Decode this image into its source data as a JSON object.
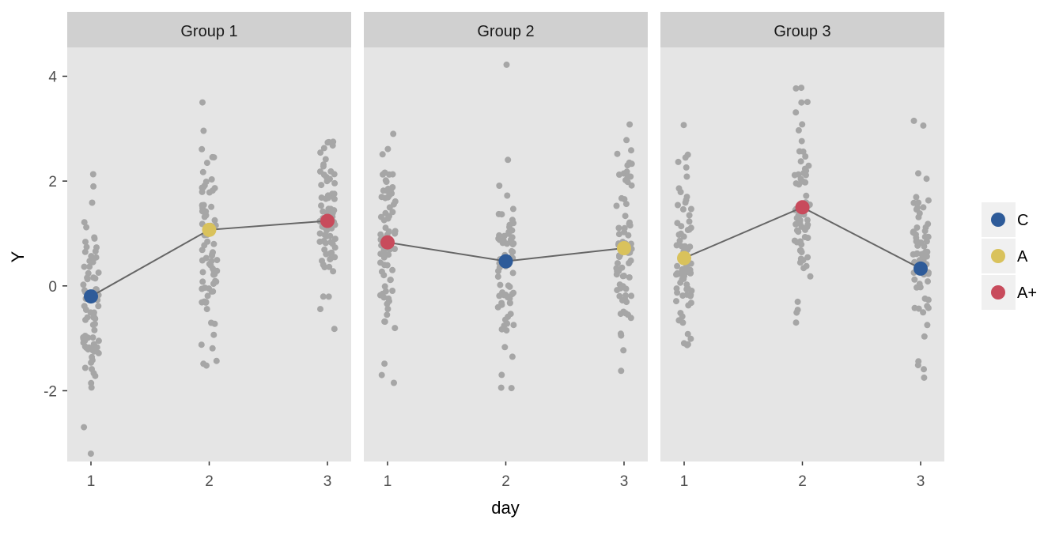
{
  "chart_data": {
    "type": "scatter",
    "subtype": "faceted jittered points with connected mean markers",
    "xlabel": "day",
    "ylabel": "Y",
    "ylim": [
      -3.35,
      4.55
    ],
    "y_ticks": [
      -2,
      0,
      2,
      4
    ],
    "y_tick_labels": [
      "-2",
      "0",
      "2",
      "4"
    ],
    "x_ticks": [
      1,
      2,
      3
    ],
    "x_tick_labels": [
      "1",
      "2",
      "3"
    ],
    "grid": false,
    "legend": {
      "position": "right",
      "entries": [
        {
          "label": "C",
          "color": "#2e5b99"
        },
        {
          "label": "A",
          "color": "#d9c25c"
        },
        {
          "label": "A+",
          "color": "#c84b5c"
        }
      ]
    },
    "colors": {
      "panel_bg": "#e5e5e5",
      "strip_bg": "#d0d0d0",
      "raw_points": "#a6a6a6",
      "line": "#666666"
    },
    "panels": [
      {
        "strip": "Group 1",
        "means": [
          {
            "x": 1,
            "y": -0.2,
            "label": "C"
          },
          {
            "x": 2,
            "y": 1.07,
            "label": "A"
          },
          {
            "x": 3,
            "y": 1.24,
            "label": "A+"
          }
        ],
        "raw": [
          {
            "x": 1,
            "range": [
              -3.2,
              2.13
            ],
            "center": -0.3,
            "spread": 0.95,
            "n": 75,
            "seed": 11
          },
          {
            "x": 2,
            "range": [
              -1.52,
              3.5
            ],
            "center": 1.0,
            "spread": 1.0,
            "n": 75,
            "seed": 23
          },
          {
            "x": 3,
            "range": [
              -0.82,
              2.75
            ],
            "center": 1.3,
            "spread": 0.85,
            "n": 75,
            "seed": 37
          }
        ]
      },
      {
        "strip": "Group 2",
        "means": [
          {
            "x": 1,
            "y": 0.83,
            "label": "A+"
          },
          {
            "x": 2,
            "y": 0.47,
            "label": "C"
          },
          {
            "x": 3,
            "y": 0.72,
            "label": "A"
          }
        ],
        "raw": [
          {
            "x": 1,
            "range": [
              -1.85,
              2.9
            ],
            "center": 0.85,
            "spread": 1.0,
            "n": 75,
            "seed": 41
          },
          {
            "x": 2,
            "range": [
              -1.95,
              4.22
            ],
            "center": 0.45,
            "spread": 0.9,
            "n": 75,
            "seed": 53
          },
          {
            "x": 3,
            "range": [
              -1.62,
              3.08
            ],
            "center": 0.7,
            "spread": 0.95,
            "n": 75,
            "seed": 67
          }
        ]
      },
      {
        "strip": "Group 3",
        "means": [
          {
            "x": 1,
            "y": 0.53,
            "label": "A"
          },
          {
            "x": 2,
            "y": 1.5,
            "label": "A+"
          },
          {
            "x": 3,
            "y": 0.33,
            "label": "C"
          }
        ],
        "raw": [
          {
            "x": 1,
            "range": [
              -1.13,
              3.07
            ],
            "center": 0.5,
            "spread": 0.85,
            "n": 75,
            "seed": 71
          },
          {
            "x": 2,
            "range": [
              -0.7,
              3.78
            ],
            "center": 1.5,
            "spread": 0.95,
            "n": 75,
            "seed": 83
          },
          {
            "x": 3,
            "range": [
              -1.75,
              3.15
            ],
            "center": 0.3,
            "spread": 0.9,
            "n": 75,
            "seed": 97
          }
        ]
      }
    ]
  }
}
